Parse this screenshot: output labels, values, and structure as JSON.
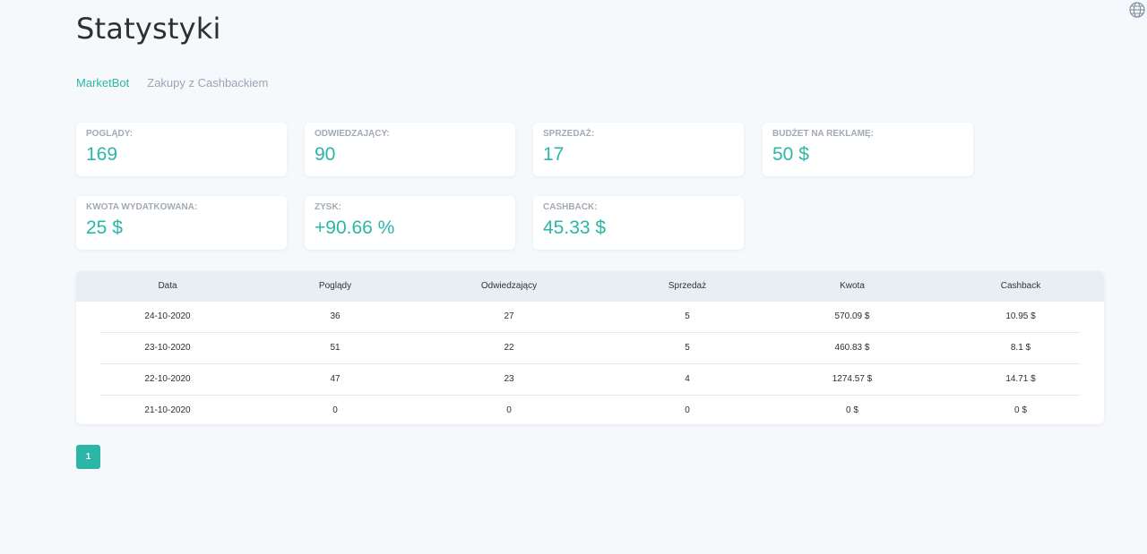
{
  "page": {
    "title": "Statystyki"
  },
  "tabs": [
    {
      "label": "MarketBot",
      "active": true
    },
    {
      "label": "Zakupy z Cashbackiem",
      "active": false
    }
  ],
  "stats": {
    "views": {
      "label": "POGLĄDY:",
      "value": "169"
    },
    "visitors": {
      "label": "ODWIEDZAJĄCY:",
      "value": "90"
    },
    "sales": {
      "label": "SPRZEDAŻ:",
      "value": "17"
    },
    "ad_budget": {
      "label": "BUDŻET NA REKLAMĘ:",
      "value": "50 $"
    },
    "spent": {
      "label": "KWOTA WYDATKOWANA:",
      "value": "25 $"
    },
    "profit": {
      "label": "ZYSK:",
      "value": "+90.66 %"
    },
    "cashback": {
      "label": "CASHBACK:",
      "value": "45.33 $"
    }
  },
  "table": {
    "columns": [
      "Data",
      "Poglądy",
      "Odwiedzający",
      "Sprzedaż",
      "Kwota",
      "Cashback"
    ],
    "rows": [
      [
        "24-10-2020",
        "36",
        "27",
        "5",
        "570.09 $",
        "10.95 $"
      ],
      [
        "23-10-2020",
        "51",
        "22",
        "5",
        "460.83 $",
        "8.1 $"
      ],
      [
        "22-10-2020",
        "47",
        "23",
        "4",
        "1274.57 $",
        "14.71 $"
      ],
      [
        "21-10-2020",
        "0",
        "0",
        "0",
        "0 $",
        "0 $"
      ]
    ]
  },
  "pagination": {
    "current": "1"
  },
  "colors": {
    "accent": "#2bb6a7",
    "background": "#f6f9fc",
    "table_header": "#e8eff3"
  },
  "icons": {
    "language": "globe-icon"
  }
}
